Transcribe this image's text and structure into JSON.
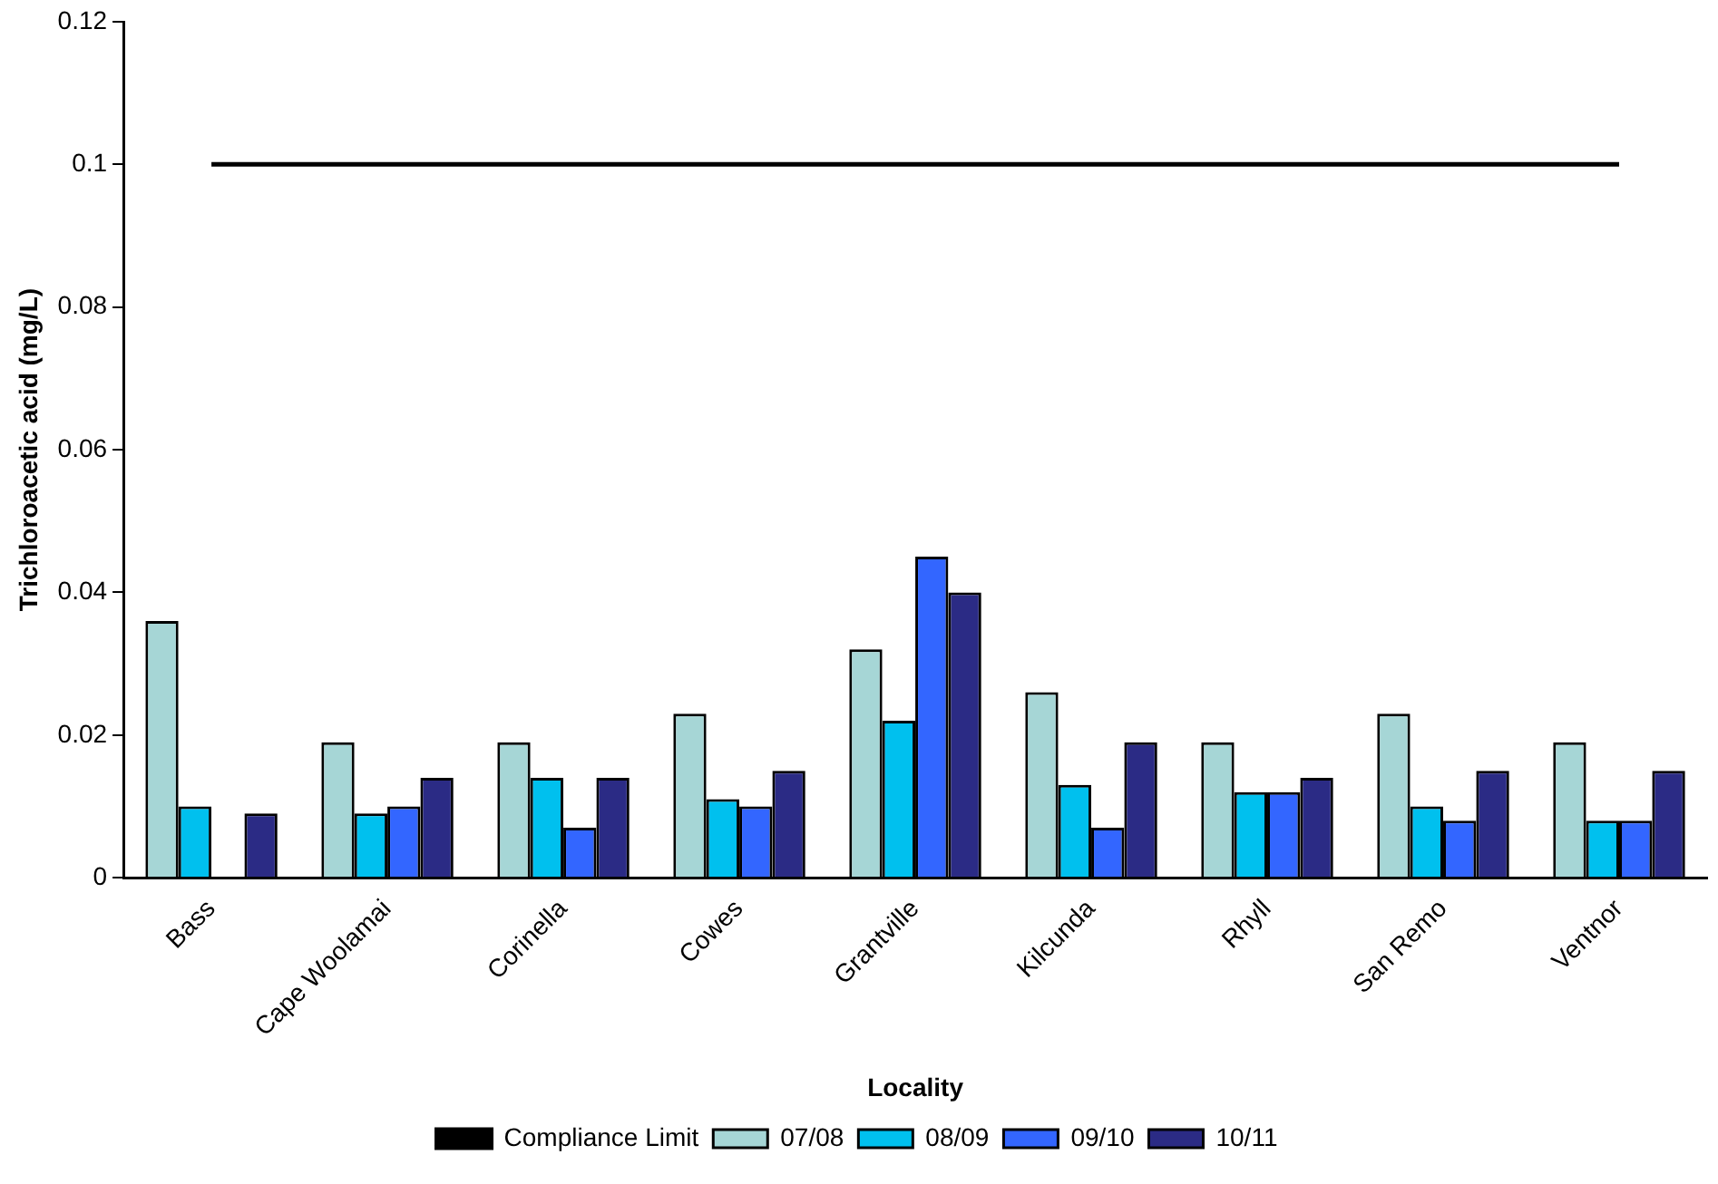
{
  "chart_data": {
    "type": "bar",
    "xlabel": "Locality",
    "ylabel": "Trichloroacetic acid (mg/L)",
    "categories": [
      "Bass",
      "Cape Woolamai",
      "Corinella",
      "Cowes",
      "Grantville",
      "Kilcunda",
      "Rhyll",
      "San Remo",
      "Ventnor"
    ],
    "series": [
      {
        "name": "07/08",
        "color": "#a6d6d6",
        "values": [
          0.036,
          0.019,
          0.019,
          0.023,
          0.032,
          0.026,
          0.019,
          0.023,
          0.019
        ]
      },
      {
        "name": "08/09",
        "color": "#00c0ee",
        "values": [
          0.01,
          0.009,
          0.014,
          0.011,
          0.022,
          0.013,
          0.012,
          0.01,
          0.008
        ]
      },
      {
        "name": "09/10",
        "color": "#3366ff",
        "values": [
          null,
          0.01,
          0.007,
          0.01,
          0.045,
          0.007,
          0.012,
          0.008,
          0.008
        ]
      },
      {
        "name": "10/11",
        "color": "#2b2b85",
        "values": [
          0.009,
          0.014,
          0.014,
          0.015,
          0.04,
          0.019,
          0.014,
          0.015,
          0.015
        ]
      },
      {
        "name": "Compliance Limit",
        "type": "line",
        "color": "#000000",
        "marker": "none",
        "values": [
          0.1,
          0.1,
          0.1,
          0.1,
          0.1,
          0.1,
          0.1,
          0.1,
          0.1
        ]
      }
    ],
    "ylim": [
      0,
      0.12
    ],
    "yticks": [
      0,
      0.02,
      0.04,
      0.06,
      0.08,
      0.1,
      0.12
    ],
    "grid": false,
    "legend": "bottom"
  }
}
